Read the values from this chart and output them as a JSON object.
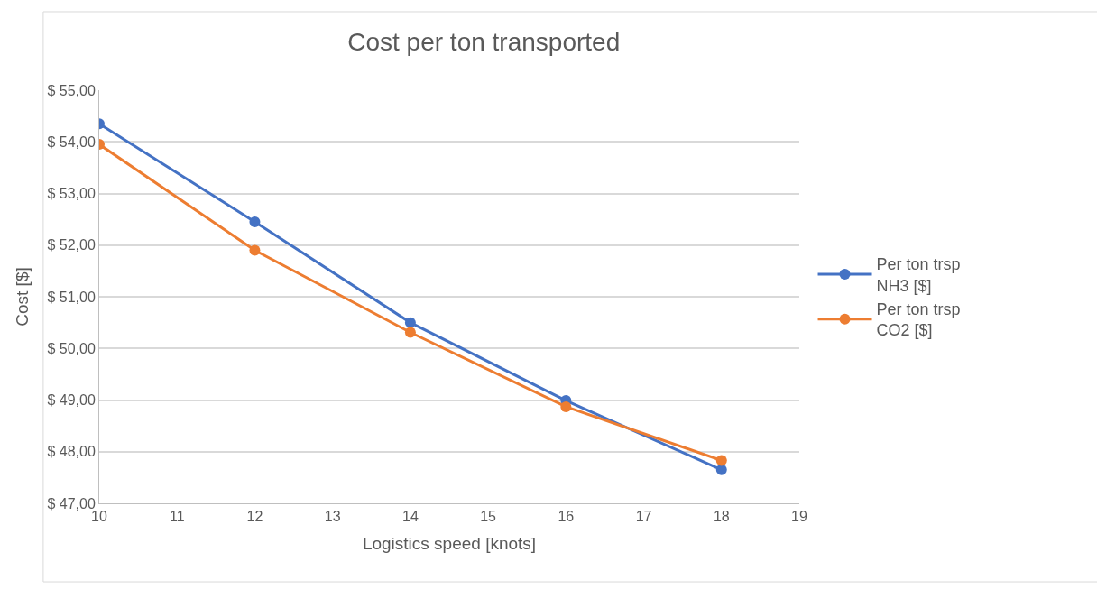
{
  "chart_data": {
    "type": "line",
    "title": "Cost per ton transported",
    "xlabel": "Logistics speed [knots]",
    "ylabel": "Cost [$]",
    "x": [
      10,
      12,
      14,
      16,
      18
    ],
    "series": [
      {
        "name": "Per ton trsp NH3 [$]",
        "color": "#4472c4",
        "values": [
          54.35,
          52.45,
          50.5,
          48.99,
          47.65
        ]
      },
      {
        "name": "Per ton trsp CO2 [$]",
        "color": "#ed7d31",
        "values": [
          53.95,
          51.9,
          50.31,
          48.87,
          47.83
        ]
      }
    ],
    "xlim": [
      10,
      19
    ],
    "xticks": [
      10,
      11,
      12,
      13,
      14,
      15,
      16,
      17,
      18,
      19
    ],
    "ylim": [
      47,
      55
    ],
    "yticks": [
      {
        "value": 47,
        "label": "$ 47,00"
      },
      {
        "value": 48,
        "label": "$ 48,00"
      },
      {
        "value": 49,
        "label": "$ 49,00"
      },
      {
        "value": 50,
        "label": "$ 50,00"
      },
      {
        "value": 51,
        "label": "$ 51,00"
      },
      {
        "value": 52,
        "label": "$ 52,00"
      },
      {
        "value": 53,
        "label": "$ 53,00"
      },
      {
        "value": 54,
        "label": "$ 54,00"
      },
      {
        "value": 55,
        "label": "$ 55,00"
      }
    ],
    "grid": "y",
    "legend": "right",
    "marker": "circle",
    "line_style": "solid"
  }
}
